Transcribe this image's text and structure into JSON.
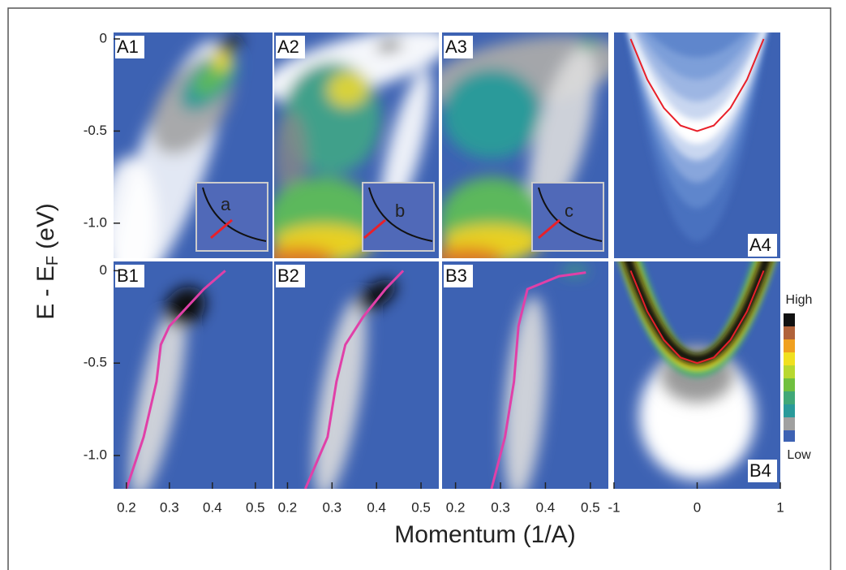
{
  "figure": {
    "xlabel": "Momentum (1/A)",
    "ylabel": {
      "main": "E - E",
      "sub": "F",
      "unit": "(eV)"
    },
    "colorbar": {
      "high": "High",
      "low": "Low"
    }
  },
  "chart_data": [
    {
      "type": "heatmap",
      "label": "A1",
      "inset": "a",
      "xlim": [
        0.17,
        0.54
      ],
      "ylim": [
        -1.19,
        0.035
      ],
      "yticks": [
        0,
        -0.5,
        {
          "value": -1,
          "label": "-1.0"
        }
      ]
    },
    {
      "type": "heatmap",
      "label": "A2",
      "inset": "b",
      "xlim": [
        0.17,
        0.54
      ],
      "ylim": [
        -1.19,
        0.035
      ]
    },
    {
      "type": "heatmap",
      "label": "A3",
      "inset": "c",
      "xlim": [
        0.17,
        0.54
      ],
      "ylim": [
        -1.19,
        0.035
      ]
    },
    {
      "type": "model",
      "label": "A4",
      "xlim": [
        -1,
        1
      ],
      "ylim": [
        -1.19,
        0.035
      ],
      "series": [
        {
          "color": "#e8202a",
          "x": [
            -0.8,
            -0.6,
            -0.4,
            -0.2,
            0,
            0.2,
            0.4,
            0.6,
            0.8
          ],
          "values": [
            0,
            -0.22,
            -0.375,
            -0.47,
            -0.5,
            -0.47,
            -0.375,
            -0.22,
            0
          ]
        }
      ]
    },
    {
      "type": "line",
      "label": "B1",
      "xlim": [
        0.17,
        0.54
      ],
      "ylim": [
        -1.18,
        0.05
      ],
      "yticks": [
        0,
        -0.5,
        {
          "value": -1,
          "label": "-1.0"
        }
      ],
      "xticks": [
        0.2,
        0.3,
        0.4,
        0.5
      ],
      "series": [
        {
          "color": "#e040a8",
          "x": [
            0.43,
            0.38,
            0.3,
            0.28,
            0.27,
            0.25,
            0.24,
            0.2
          ],
          "values": [
            0,
            -0.1,
            -0.3,
            -0.4,
            -0.6,
            -0.8,
            -0.9,
            -1.18
          ]
        }
      ]
    },
    {
      "type": "line",
      "label": "B2",
      "xlim": [
        0.17,
        0.54
      ],
      "ylim": [
        -1.18,
        0.05
      ],
      "xticks": [
        0.2,
        0.3,
        0.4,
        0.5
      ],
      "series": [
        {
          "color": "#e040a8",
          "x": [
            0.46,
            0.42,
            0.37,
            0.33,
            0.31,
            0.3,
            0.29,
            0.24
          ],
          "values": [
            0,
            -0.1,
            -0.25,
            -0.4,
            -0.6,
            -0.75,
            -0.9,
            -1.18
          ]
        }
      ]
    },
    {
      "type": "line",
      "label": "B3",
      "xlim": [
        0.17,
        0.54
      ],
      "ylim": [
        -1.18,
        0.05
      ],
      "xticks": [
        0.2,
        0.3,
        0.4,
        0.5
      ],
      "series": [
        {
          "color": "#e040a8",
          "x": [
            0.49,
            0.43,
            0.36,
            0.34,
            0.33,
            0.32,
            0.31,
            0.28
          ],
          "values": [
            -0.01,
            -0.03,
            -0.1,
            -0.3,
            -0.6,
            -0.75,
            -0.9,
            -1.18
          ]
        }
      ]
    },
    {
      "type": "model",
      "label": "B4",
      "xlim": [
        -1,
        1
      ],
      "ylim": [
        -1.18,
        0.05
      ],
      "xticks": [
        -1,
        0,
        1
      ],
      "series": [
        {
          "color": "#e8202a",
          "x": [
            -0.8,
            -0.6,
            -0.4,
            -0.2,
            0,
            0.2,
            0.4,
            0.6,
            0.8
          ],
          "values": [
            0,
            -0.22,
            -0.375,
            -0.47,
            -0.5,
            -0.47,
            -0.375,
            -0.22,
            0
          ]
        }
      ]
    }
  ]
}
